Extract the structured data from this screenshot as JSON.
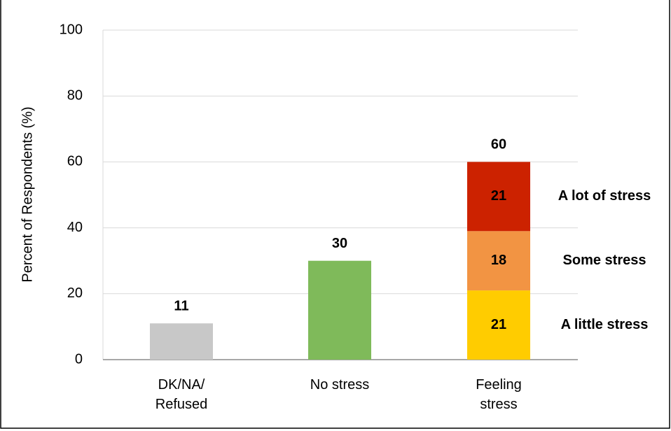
{
  "chart_data": {
    "type": "stacked-bar",
    "y_axis_label": "Percent of Respondents (%)",
    "categories": [
      "DK/NA/ Refused",
      "No stress",
      "Feeling stress"
    ],
    "values": [
      11,
      30,
      60
    ],
    "colors": [
      "#c8c8c8",
      "#7fba5a",
      null
    ],
    "series": [
      {
        "name": "A little stress",
        "color": "#ffcc00",
        "values": [
          null,
          null,
          21
        ]
      },
      {
        "name": "Some stress",
        "color": "#f29443",
        "values": [
          null,
          null,
          18
        ]
      },
      {
        "name": "A lot of stress",
        "color": "#cc2200",
        "values": [
          null,
          null,
          21
        ]
      }
    ],
    "ylim": [
      0,
      100
    ],
    "yticks": [
      0,
      20,
      40,
      60,
      80,
      100
    ],
    "grid": true
  }
}
